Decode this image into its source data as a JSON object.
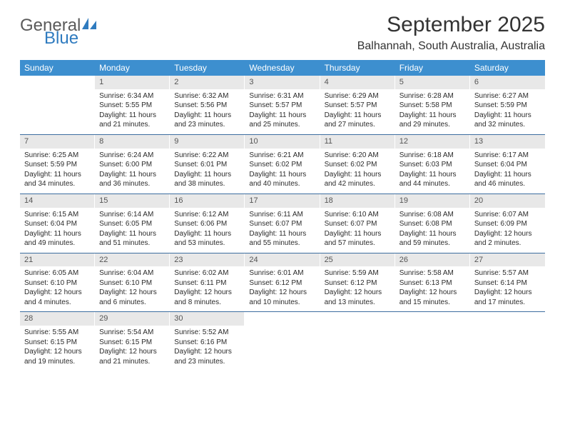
{
  "logo": {
    "text_general": "General",
    "text_blue": "Blue",
    "icon_fill": "#2f7bbf"
  },
  "title": "September 2025",
  "location": "Balhannah, South Australia, Australia",
  "colors": {
    "header_bg": "#3d8fcf",
    "header_text": "#ffffff",
    "daynum_bg": "#e8e8e8",
    "week_border": "#3d6ea0",
    "text": "#333333"
  },
  "day_headers": [
    "Sunday",
    "Monday",
    "Tuesday",
    "Wednesday",
    "Thursday",
    "Friday",
    "Saturday"
  ],
  "weeks": [
    [
      {
        "n": "",
        "sunrise": "",
        "sunset": "",
        "daylight": ""
      },
      {
        "n": "1",
        "sunrise": "Sunrise: 6:34 AM",
        "sunset": "Sunset: 5:55 PM",
        "daylight": "Daylight: 11 hours and 21 minutes."
      },
      {
        "n": "2",
        "sunrise": "Sunrise: 6:32 AM",
        "sunset": "Sunset: 5:56 PM",
        "daylight": "Daylight: 11 hours and 23 minutes."
      },
      {
        "n": "3",
        "sunrise": "Sunrise: 6:31 AM",
        "sunset": "Sunset: 5:57 PM",
        "daylight": "Daylight: 11 hours and 25 minutes."
      },
      {
        "n": "4",
        "sunrise": "Sunrise: 6:29 AM",
        "sunset": "Sunset: 5:57 PM",
        "daylight": "Daylight: 11 hours and 27 minutes."
      },
      {
        "n": "5",
        "sunrise": "Sunrise: 6:28 AM",
        "sunset": "Sunset: 5:58 PM",
        "daylight": "Daylight: 11 hours and 29 minutes."
      },
      {
        "n": "6",
        "sunrise": "Sunrise: 6:27 AM",
        "sunset": "Sunset: 5:59 PM",
        "daylight": "Daylight: 11 hours and 32 minutes."
      }
    ],
    [
      {
        "n": "7",
        "sunrise": "Sunrise: 6:25 AM",
        "sunset": "Sunset: 5:59 PM",
        "daylight": "Daylight: 11 hours and 34 minutes."
      },
      {
        "n": "8",
        "sunrise": "Sunrise: 6:24 AM",
        "sunset": "Sunset: 6:00 PM",
        "daylight": "Daylight: 11 hours and 36 minutes."
      },
      {
        "n": "9",
        "sunrise": "Sunrise: 6:22 AM",
        "sunset": "Sunset: 6:01 PM",
        "daylight": "Daylight: 11 hours and 38 minutes."
      },
      {
        "n": "10",
        "sunrise": "Sunrise: 6:21 AM",
        "sunset": "Sunset: 6:02 PM",
        "daylight": "Daylight: 11 hours and 40 minutes."
      },
      {
        "n": "11",
        "sunrise": "Sunrise: 6:20 AM",
        "sunset": "Sunset: 6:02 PM",
        "daylight": "Daylight: 11 hours and 42 minutes."
      },
      {
        "n": "12",
        "sunrise": "Sunrise: 6:18 AM",
        "sunset": "Sunset: 6:03 PM",
        "daylight": "Daylight: 11 hours and 44 minutes."
      },
      {
        "n": "13",
        "sunrise": "Sunrise: 6:17 AM",
        "sunset": "Sunset: 6:04 PM",
        "daylight": "Daylight: 11 hours and 46 minutes."
      }
    ],
    [
      {
        "n": "14",
        "sunrise": "Sunrise: 6:15 AM",
        "sunset": "Sunset: 6:04 PM",
        "daylight": "Daylight: 11 hours and 49 minutes."
      },
      {
        "n": "15",
        "sunrise": "Sunrise: 6:14 AM",
        "sunset": "Sunset: 6:05 PM",
        "daylight": "Daylight: 11 hours and 51 minutes."
      },
      {
        "n": "16",
        "sunrise": "Sunrise: 6:12 AM",
        "sunset": "Sunset: 6:06 PM",
        "daylight": "Daylight: 11 hours and 53 minutes."
      },
      {
        "n": "17",
        "sunrise": "Sunrise: 6:11 AM",
        "sunset": "Sunset: 6:07 PM",
        "daylight": "Daylight: 11 hours and 55 minutes."
      },
      {
        "n": "18",
        "sunrise": "Sunrise: 6:10 AM",
        "sunset": "Sunset: 6:07 PM",
        "daylight": "Daylight: 11 hours and 57 minutes."
      },
      {
        "n": "19",
        "sunrise": "Sunrise: 6:08 AM",
        "sunset": "Sunset: 6:08 PM",
        "daylight": "Daylight: 11 hours and 59 minutes."
      },
      {
        "n": "20",
        "sunrise": "Sunrise: 6:07 AM",
        "sunset": "Sunset: 6:09 PM",
        "daylight": "Daylight: 12 hours and 2 minutes."
      }
    ],
    [
      {
        "n": "21",
        "sunrise": "Sunrise: 6:05 AM",
        "sunset": "Sunset: 6:10 PM",
        "daylight": "Daylight: 12 hours and 4 minutes."
      },
      {
        "n": "22",
        "sunrise": "Sunrise: 6:04 AM",
        "sunset": "Sunset: 6:10 PM",
        "daylight": "Daylight: 12 hours and 6 minutes."
      },
      {
        "n": "23",
        "sunrise": "Sunrise: 6:02 AM",
        "sunset": "Sunset: 6:11 PM",
        "daylight": "Daylight: 12 hours and 8 minutes."
      },
      {
        "n": "24",
        "sunrise": "Sunrise: 6:01 AM",
        "sunset": "Sunset: 6:12 PM",
        "daylight": "Daylight: 12 hours and 10 minutes."
      },
      {
        "n": "25",
        "sunrise": "Sunrise: 5:59 AM",
        "sunset": "Sunset: 6:12 PM",
        "daylight": "Daylight: 12 hours and 13 minutes."
      },
      {
        "n": "26",
        "sunrise": "Sunrise: 5:58 AM",
        "sunset": "Sunset: 6:13 PM",
        "daylight": "Daylight: 12 hours and 15 minutes."
      },
      {
        "n": "27",
        "sunrise": "Sunrise: 5:57 AM",
        "sunset": "Sunset: 6:14 PM",
        "daylight": "Daylight: 12 hours and 17 minutes."
      }
    ],
    [
      {
        "n": "28",
        "sunrise": "Sunrise: 5:55 AM",
        "sunset": "Sunset: 6:15 PM",
        "daylight": "Daylight: 12 hours and 19 minutes."
      },
      {
        "n": "29",
        "sunrise": "Sunrise: 5:54 AM",
        "sunset": "Sunset: 6:15 PM",
        "daylight": "Daylight: 12 hours and 21 minutes."
      },
      {
        "n": "30",
        "sunrise": "Sunrise: 5:52 AM",
        "sunset": "Sunset: 6:16 PM",
        "daylight": "Daylight: 12 hours and 23 minutes."
      },
      {
        "n": "",
        "sunrise": "",
        "sunset": "",
        "daylight": ""
      },
      {
        "n": "",
        "sunrise": "",
        "sunset": "",
        "daylight": ""
      },
      {
        "n": "",
        "sunrise": "",
        "sunset": "",
        "daylight": ""
      },
      {
        "n": "",
        "sunrise": "",
        "sunset": "",
        "daylight": ""
      }
    ]
  ]
}
